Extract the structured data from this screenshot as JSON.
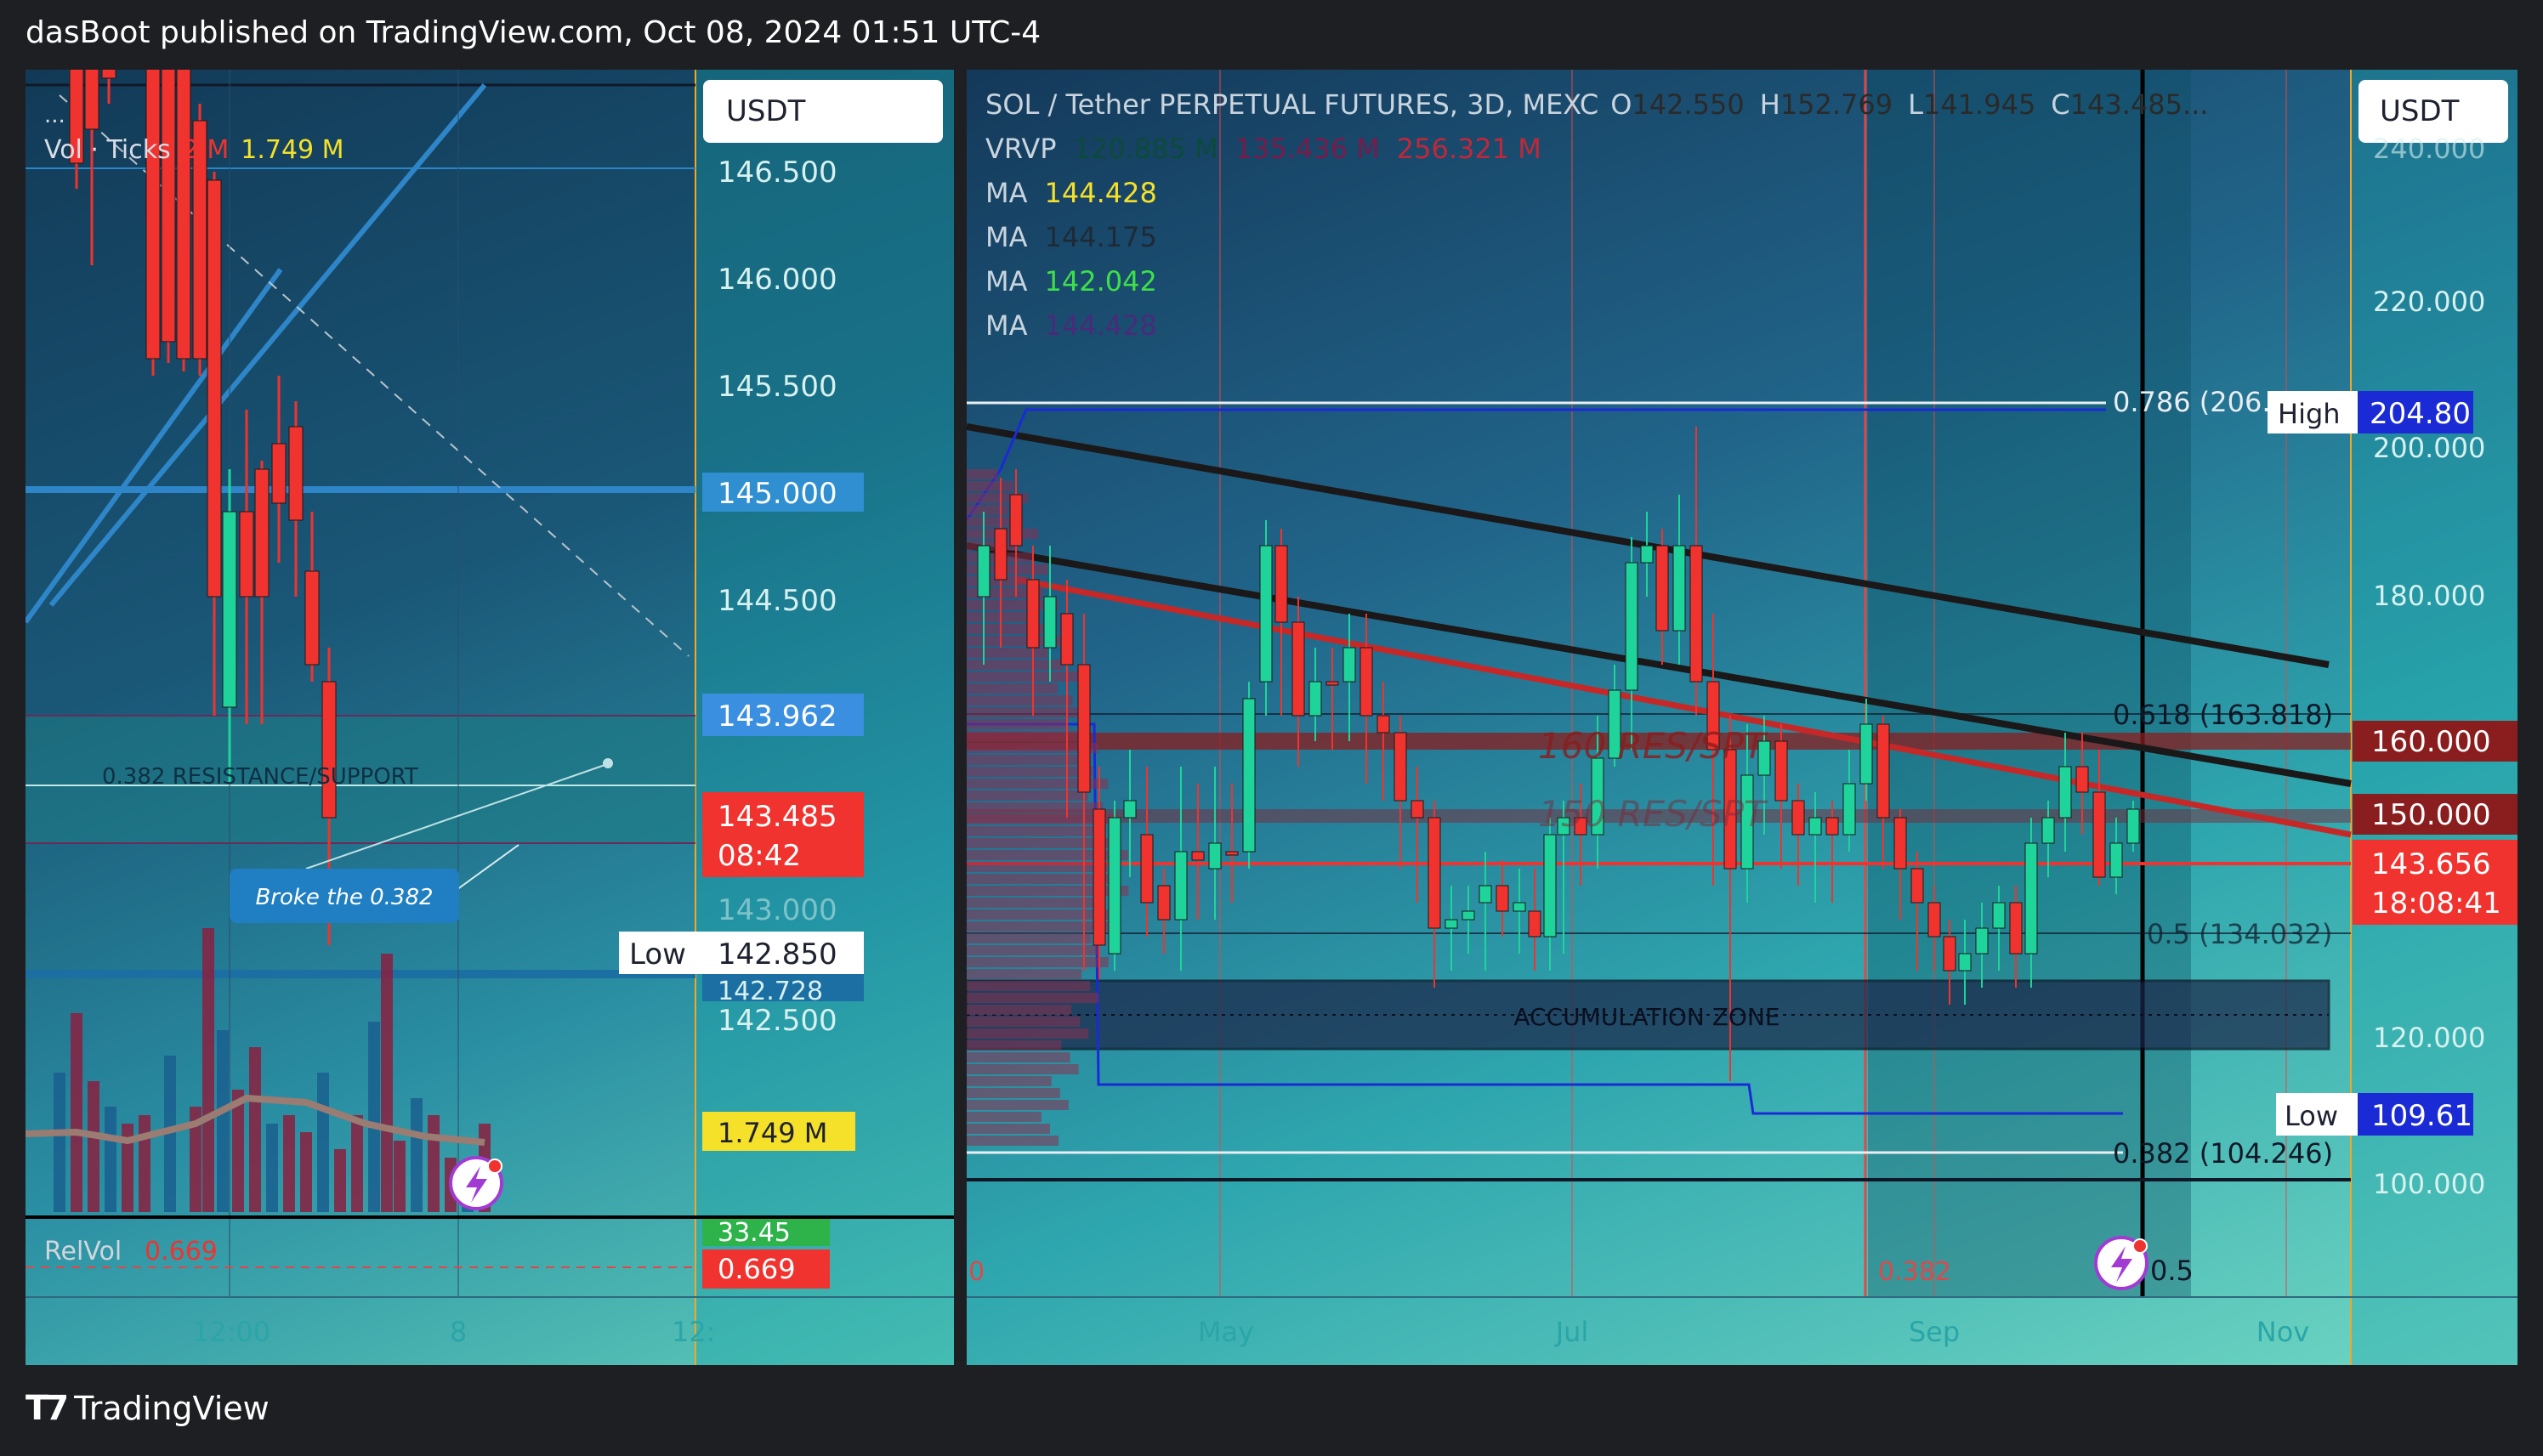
{
  "header": {
    "attribution": "dasBoot published on TradingView.com, Oct 08, 2024 01:51 UTC-4"
  },
  "footer": {
    "logo_text": "TradingView",
    "logo_icon": "tradingview-logo-icon"
  },
  "left_chart": {
    "menu_dots": "...",
    "legend": {
      "vol_label": "Vol · Ticks",
      "vol_val1": "2 M",
      "vol_val2": "1.749 M"
    },
    "currency": "USDT",
    "price_ticks": [
      "146.500",
      "146.000",
      "145.500",
      "145.000",
      "144.500",
      "143.962",
      "143.485",
      "08:42",
      "143.000",
      "142.850",
      "142.728",
      "142.500",
      "1.749 M",
      "33.45",
      "0.669"
    ],
    "low_label": "Low",
    "resistance_label": "0.382 RESISTANCE/SUPPORT",
    "callout": "Broke the 0.382",
    "relvol_label": "RelVol",
    "relvol_value": "0.669",
    "time_ticks": [
      "12:00",
      "8",
      "12:"
    ],
    "colors": {
      "up": "#1fd49a",
      "down": "#f0332f",
      "price_tag": "#f0332f",
      "line": "#2f8fd0"
    }
  },
  "right_chart": {
    "legend": {
      "symbol": "SOL / Tether PERPETUAL FUTURES, 3D, MEXC",
      "o_label": "O",
      "o": "142.550",
      "h_label": "H",
      "h": "152.769",
      "l_label": "L",
      "l": "141.945",
      "c_label": "C",
      "c": "143.485...",
      "vrvp_label": "VRVP",
      "vrvp": [
        "120.885 M",
        "135.436 M",
        "256.321 M"
      ],
      "ma_label": "MA",
      "ma": [
        "144.428",
        "144.175",
        "142.042",
        "144.428"
      ]
    },
    "currency": "USDT",
    "price_ticks": [
      "240.000",
      "220.000",
      "200.000",
      "180.000",
      "120.000",
      "100.000"
    ],
    "tags": {
      "high_label": "High",
      "high": "204.80",
      "t160": "160.000",
      "t150": "150.000",
      "last": "143.656",
      "countdown": "18:08:41",
      "low_label": "Low",
      "low": "109.61"
    },
    "fib": [
      "0.786 (206.",
      "0.618 (163.818)",
      "0.5 (134.032)",
      "0.382 (104.246)"
    ],
    "zones": {
      "accumulation": "ACCUMULATION ZONE",
      "res160": "160 RES/SPT",
      "res150": "150 RES/SPT"
    },
    "bottom_labels": {
      "zero": "0",
      "fib382": "0.382",
      "fib5": "0.5"
    },
    "time_ticks": [
      "May",
      "Jul",
      "Sep",
      "Nov"
    ],
    "colors": {
      "up": "#1fd49a",
      "down": "#f0332f",
      "resistance": "#8a1d1d"
    }
  }
}
